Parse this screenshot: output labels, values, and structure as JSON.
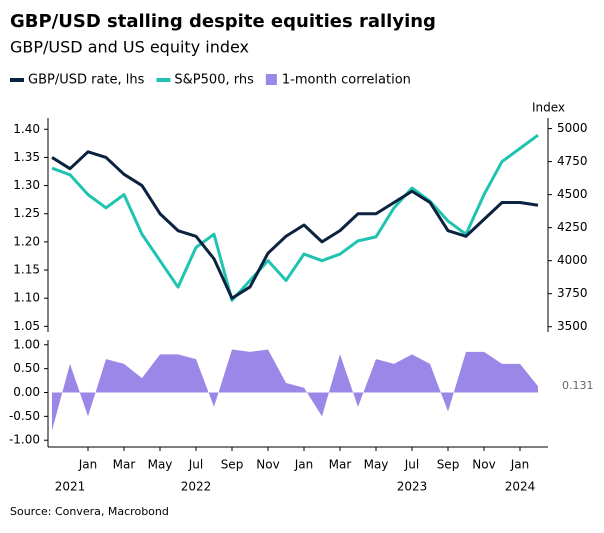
{
  "chart_data": {
    "type": "line",
    "title": "GBP/USD stalling despite equities rallying",
    "subtitle": "GBP/USD and US equity index",
    "y2_label": "Index",
    "source": "Source: Convera, Macrobond",
    "x": [
      "2021-11",
      "2021-12",
      "2022-01",
      "2022-02",
      "2022-03",
      "2022-04",
      "2022-05",
      "2022-06",
      "2022-07",
      "2022-08",
      "2022-09",
      "2022-10",
      "2022-11",
      "2022-12",
      "2023-01",
      "2023-02",
      "2023-03",
      "2023-04",
      "2023-05",
      "2023-06",
      "2023-07",
      "2023-08",
      "2023-09",
      "2023-10",
      "2023-11",
      "2023-12",
      "2024-01",
      "2024-02"
    ],
    "xticks": [
      {
        "value": "2022-01",
        "label": "Jan"
      },
      {
        "value": "2022-03",
        "label": "Mar"
      },
      {
        "value": "2022-05",
        "label": "May"
      },
      {
        "value": "2022-07",
        "label": "Jul"
      },
      {
        "value": "2022-09",
        "label": "Sep"
      },
      {
        "value": "2022-11",
        "label": "Nov"
      },
      {
        "value": "2023-01",
        "label": "Jan"
      },
      {
        "value": "2023-03",
        "label": "Mar"
      },
      {
        "value": "2023-05",
        "label": "May"
      },
      {
        "value": "2023-07",
        "label": "Jul"
      },
      {
        "value": "2023-09",
        "label": "Sep"
      },
      {
        "value": "2023-11",
        "label": "Nov"
      },
      {
        "value": "2024-01",
        "label": "Jan"
      }
    ],
    "year_labels": [
      {
        "value": "2021-12",
        "label": "2021"
      },
      {
        "value": "2022-07",
        "label": "2022"
      },
      {
        "value": "2023-07",
        "label": "2023"
      },
      {
        "value": "2024-01",
        "label": "2024"
      }
    ],
    "ylim": [
      1.04,
      1.42
    ],
    "yticks": [
      1.05,
      {
        "value": 1.1,
        "label": "1.10"
      },
      1.15,
      {
        "value": 1.2,
        "label": "1.20"
      },
      1.25,
      {
        "value": 1.3,
        "label": "1.30"
      },
      1.35,
      {
        "value": 1.4,
        "label": "1.40"
      }
    ],
    "y2lim": [
      3460,
      5080
    ],
    "y2ticks": [
      3500,
      3750,
      4000,
      4250,
      4500,
      4750,
      5000
    ],
    "series": [
      {
        "name": "GBP/USD rate, lhs",
        "color": "#0b2240",
        "values": [
          1.35,
          1.33,
          1.36,
          1.35,
          1.32,
          1.3,
          1.25,
          1.22,
          1.21,
          1.17,
          1.1,
          1.12,
          1.18,
          1.21,
          1.23,
          1.2,
          1.22,
          1.25,
          1.25,
          1.27,
          1.29,
          1.27,
          1.22,
          1.21,
          1.24,
          1.27,
          1.27,
          1.265
        ]
      },
      {
        "name": "S&P500, rhs",
        "color": "#1fc4b0",
        "axis": "y2",
        "values": [
          4700,
          4650,
          4500,
          4400,
          4500,
          4200,
          4000,
          3800,
          4100,
          4200,
          3700,
          3850,
          4000,
          3850,
          4050,
          4000,
          4050,
          4150,
          4180,
          4400,
          4550,
          4450,
          4300,
          4200,
          4500,
          4750,
          4850,
          4950
        ]
      }
    ],
    "correlation": {
      "type": "area",
      "name": "1-month correlation",
      "color": "#9b87e8",
      "values": [
        -0.8,
        0.6,
        -0.5,
        0.7,
        0.6,
        0.3,
        0.8,
        0.8,
        0.7,
        -0.3,
        0.9,
        0.85,
        0.9,
        0.2,
        0.1,
        -0.5,
        0.8,
        -0.3,
        0.7,
        0.6,
        0.8,
        0.6,
        -0.4,
        0.85,
        0.85,
        0.6,
        0.6,
        0.131
      ],
      "last_label": "0.131",
      "ylim": [
        -1.1,
        1.1
      ],
      "yticks": [
        {
          "value": -1,
          "label": "-1.00"
        },
        {
          "value": -0.5,
          "label": "-0.50"
        },
        {
          "value": 0,
          "label": "0.00"
        },
        {
          "value": 0.5,
          "label": "0.50"
        },
        {
          "value": 1,
          "label": "1.00"
        }
      ]
    }
  }
}
